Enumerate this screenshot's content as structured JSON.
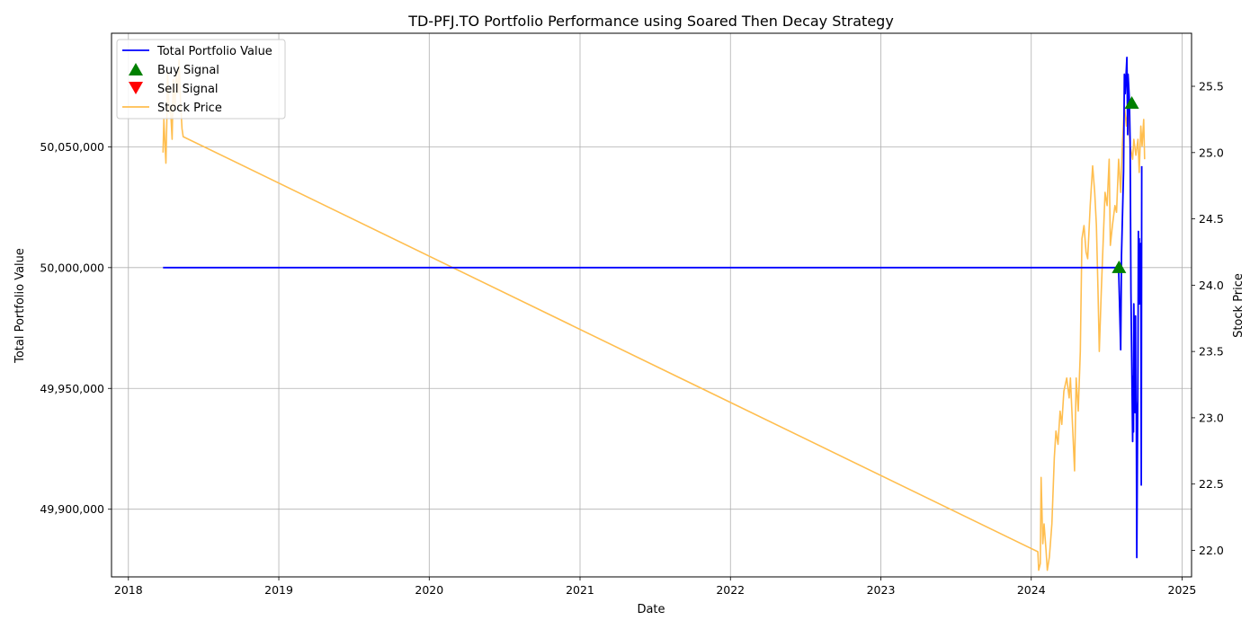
{
  "chart_data": {
    "type": "line",
    "title": "TD-PFJ.TO Portfolio Performance using Soared Then Decay Strategy",
    "xlabel": "Date",
    "ylabel": "Total Portfolio Value",
    "y2label": "Stock Price",
    "x_ticks": [
      "2018",
      "2019",
      "2020",
      "2021",
      "2022",
      "2023",
      "2024",
      "2025"
    ],
    "y_ticks": [
      "49,900,000",
      "49,950,000",
      "50,000,000",
      "50,050,000"
    ],
    "y_tick_values": [
      49900000,
      49950000,
      50000000,
      50050000
    ],
    "y2_ticks": [
      "22.0",
      "22.5",
      "23.0",
      "23.5",
      "24.0",
      "24.5",
      "25.0",
      "25.5"
    ],
    "y2_tick_values": [
      22.0,
      22.5,
      23.0,
      23.5,
      24.0,
      24.5,
      25.0,
      25.5
    ],
    "xlim": [
      "2017-11-21",
      "2025-01-24"
    ],
    "ylim": [
      49872000,
      50097000
    ],
    "y2lim": [
      21.8,
      25.9
    ],
    "grid": true,
    "legend_position": "top-left",
    "legend": [
      "Total Portfolio Value",
      "Buy Signal",
      "Sell Signal",
      "Stock Price"
    ],
    "colors": {
      "portfolio": "#0000ff",
      "stock": "#ffbe4f",
      "buy": "#008000",
      "sell": "#ff0000",
      "grid": "#b0b0b0"
    },
    "series": [
      {
        "name": "Total Portfolio Value",
        "axis": "left",
        "points": [
          [
            "2018-03-26",
            50000000
          ],
          [
            "2024-07-31",
            50000000
          ],
          [
            "2024-08-02",
            49987000
          ],
          [
            "2024-08-05",
            49966000
          ],
          [
            "2024-08-07",
            50005000
          ],
          [
            "2024-08-12",
            50040000
          ],
          [
            "2024-08-14",
            50080000
          ],
          [
            "2024-08-16",
            50072000
          ],
          [
            "2024-08-20",
            50087000
          ],
          [
            "2024-08-21",
            50072000
          ],
          [
            "2024-08-22",
            50055000
          ],
          [
            "2024-08-23",
            50080000
          ],
          [
            "2024-08-26",
            50070000
          ],
          [
            "2024-08-28",
            50052000
          ],
          [
            "2024-08-30",
            49990000
          ],
          [
            "2024-09-03",
            49928000
          ],
          [
            "2024-09-04",
            49955000
          ],
          [
            "2024-09-05",
            49932000
          ],
          [
            "2024-09-06",
            49985000
          ],
          [
            "2024-09-09",
            49940000
          ],
          [
            "2024-09-10",
            49980000
          ],
          [
            "2024-09-11",
            49945000
          ],
          [
            "2024-09-12",
            49940000
          ],
          [
            "2024-09-13",
            49880000
          ],
          [
            "2024-09-16",
            49960000
          ],
          [
            "2024-09-17",
            50015000
          ],
          [
            "2024-09-18",
            49985000
          ],
          [
            "2024-09-19",
            50012000
          ],
          [
            "2024-09-20",
            49985000
          ],
          [
            "2024-09-23",
            50010000
          ],
          [
            "2024-09-24",
            49910000
          ],
          [
            "2024-09-25",
            50042000
          ]
        ]
      },
      {
        "name": "Stock Price",
        "axis": "right",
        "points": [
          [
            "2018-03-26",
            25.0
          ],
          [
            "2018-03-28",
            25.25
          ],
          [
            "2018-04-02",
            24.92
          ],
          [
            "2018-04-04",
            25.2
          ],
          [
            "2018-04-06",
            25.6
          ],
          [
            "2018-04-10",
            25.3
          ],
          [
            "2018-04-13",
            25.35
          ],
          [
            "2018-04-17",
            25.1
          ],
          [
            "2018-04-20",
            25.55
          ],
          [
            "2018-04-24",
            25.35
          ],
          [
            "2018-04-27",
            25.6
          ],
          [
            "2018-05-01",
            25.45
          ],
          [
            "2018-05-04",
            25.7
          ],
          [
            "2018-05-08",
            25.35
          ],
          [
            "2018-05-11",
            25.18
          ],
          [
            "2018-05-14",
            25.12
          ],
          [
            "2024-01-17",
            21.99
          ],
          [
            "2024-01-19",
            21.85
          ],
          [
            "2024-01-23",
            21.9
          ],
          [
            "2024-01-25",
            22.55
          ],
          [
            "2024-01-29",
            22.05
          ],
          [
            "2024-02-01",
            22.2
          ],
          [
            "2024-02-06",
            22.0
          ],
          [
            "2024-02-09",
            21.85
          ],
          [
            "2024-02-14",
            21.95
          ],
          [
            "2024-02-20",
            22.2
          ],
          [
            "2024-02-26",
            22.7
          ],
          [
            "2024-03-01",
            22.9
          ],
          [
            "2024-03-06",
            22.8
          ],
          [
            "2024-03-11",
            23.05
          ],
          [
            "2024-03-15",
            22.95
          ],
          [
            "2024-03-20",
            23.2
          ],
          [
            "2024-03-27",
            23.3
          ],
          [
            "2024-04-02",
            23.15
          ],
          [
            "2024-04-05",
            23.3
          ],
          [
            "2024-04-10",
            22.95
          ],
          [
            "2024-04-15",
            22.6
          ],
          [
            "2024-04-19",
            23.3
          ],
          [
            "2024-04-24",
            23.05
          ],
          [
            "2024-04-29",
            23.5
          ],
          [
            "2024-05-03",
            24.35
          ],
          [
            "2024-05-08",
            24.45
          ],
          [
            "2024-05-13",
            24.25
          ],
          [
            "2024-05-17",
            24.2
          ],
          [
            "2024-05-23",
            24.6
          ],
          [
            "2024-05-29",
            24.9
          ],
          [
            "2024-06-03",
            24.7
          ],
          [
            "2024-06-07",
            24.45
          ],
          [
            "2024-06-11",
            23.95
          ],
          [
            "2024-06-14",
            23.5
          ],
          [
            "2024-06-19",
            23.95
          ],
          [
            "2024-06-25",
            24.45
          ],
          [
            "2024-06-28",
            24.7
          ],
          [
            "2024-07-03",
            24.6
          ],
          [
            "2024-07-08",
            24.95
          ],
          [
            "2024-07-11",
            24.3
          ],
          [
            "2024-07-16",
            24.45
          ],
          [
            "2024-07-22",
            24.6
          ],
          [
            "2024-07-26",
            24.55
          ],
          [
            "2024-07-31",
            24.95
          ],
          [
            "2024-08-05",
            24.7
          ],
          [
            "2024-08-09",
            25.05
          ],
          [
            "2024-08-14",
            25.35
          ],
          [
            "2024-08-19",
            25.2
          ],
          [
            "2024-08-23",
            25.35
          ],
          [
            "2024-08-28",
            25.05
          ],
          [
            "2024-09-03",
            24.95
          ],
          [
            "2024-09-06",
            25.1
          ],
          [
            "2024-09-11",
            24.98
          ],
          [
            "2024-09-16",
            25.1
          ],
          [
            "2024-09-19",
            24.85
          ],
          [
            "2024-09-23",
            25.2
          ],
          [
            "2024-09-26",
            25.05
          ],
          [
            "2024-09-30",
            25.25
          ],
          [
            "2024-10-02",
            24.95
          ]
        ]
      }
    ],
    "buy_signals": [
      [
        "2024-08-01",
        50000000
      ],
      [
        "2024-09-01",
        50068000
      ]
    ],
    "sell_signals": []
  }
}
